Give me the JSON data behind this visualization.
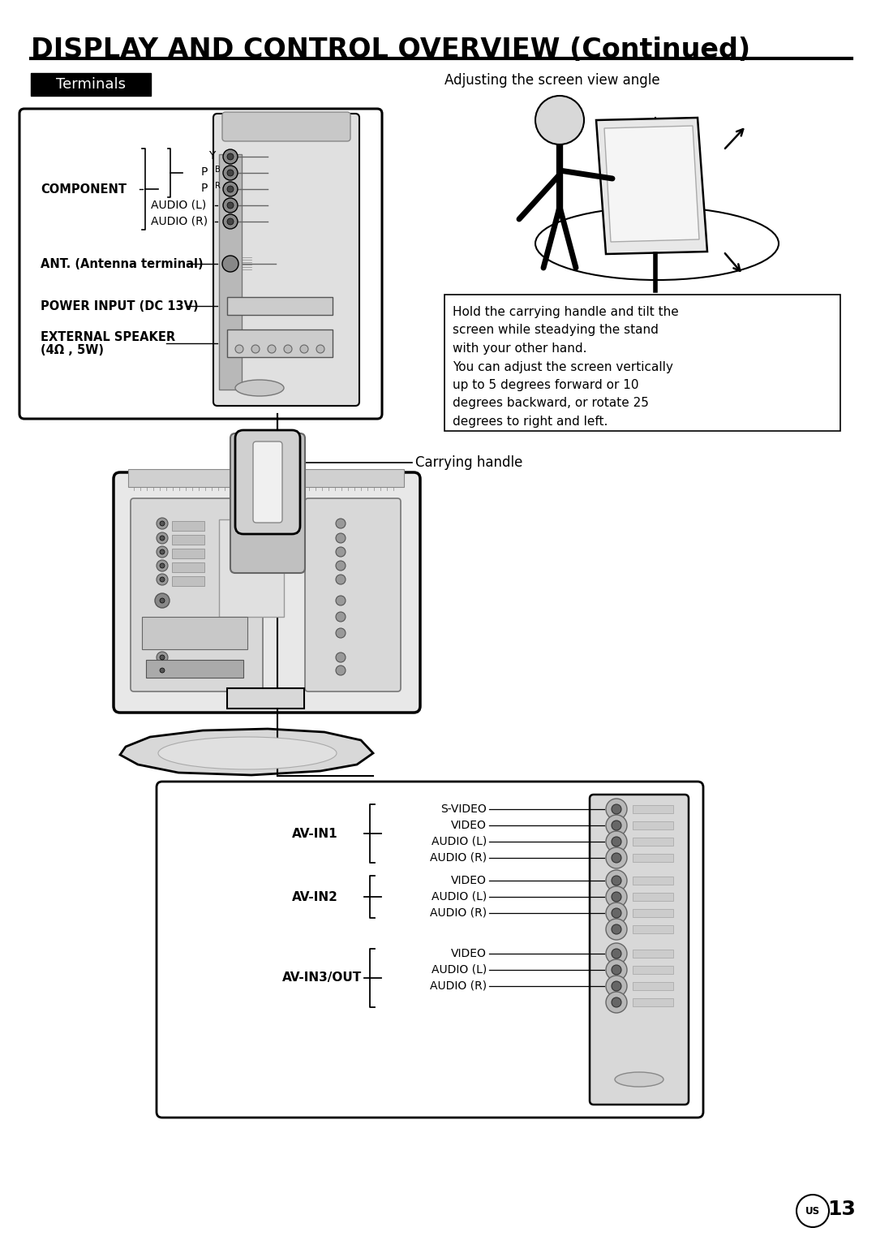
{
  "title": "DISPLAY AND CONTROL OVERVIEW (Continued)",
  "title_fontsize": 24,
  "bg_color": "#ffffff",
  "text_color": "#000000",
  "terminals_label": "Terminals",
  "section_right_title": "Adjusting the screen view angle",
  "box_text_lines": [
    "Hold the carrying handle and tilt the",
    "screen while steadying the stand",
    "with your other hand.",
    "You can adjust the screen vertically",
    "up to 5 degrees forward or 10",
    "degrees backward, or rotate 25",
    "degrees to right and left."
  ],
  "carrying_handle_label": "Carrying handle",
  "component_label": "COMPONENT",
  "y_label": "Y",
  "pb_label": "P",
  "pb_sub": "B",
  "pr_label": "P",
  "pr_sub": "R",
  "audio_l_label": "AUDIO (L)",
  "audio_r_label": "AUDIO (R)",
  "ant_label": "ANT. (Antenna terminal)",
  "power_label": "POWER INPUT (DC 13V)",
  "ext_spk_label": "EXTERNAL SPEAKER",
  "ext_spk_sub": "(4Ω , 5W)",
  "avin1_label": "AV-IN1",
  "avin2_label": "AV-IN2",
  "avin3_label": "AV-IN3/OUT",
  "svideo_label": "S-VIDEO",
  "video_label1": "VIDEO",
  "audiol_label": "AUDIO (L)",
  "audior_label": "AUDIO (R)",
  "video_label2": "VIDEO",
  "audiol2_label": "AUDIO (L)",
  "audior2_label": "AUDIO (R)",
  "video_label3": "VIDEO",
  "audiol3_label": "AUDIO (L)",
  "audior3_label": "AUDIO (R)",
  "page_num": "13",
  "us_label": "US"
}
